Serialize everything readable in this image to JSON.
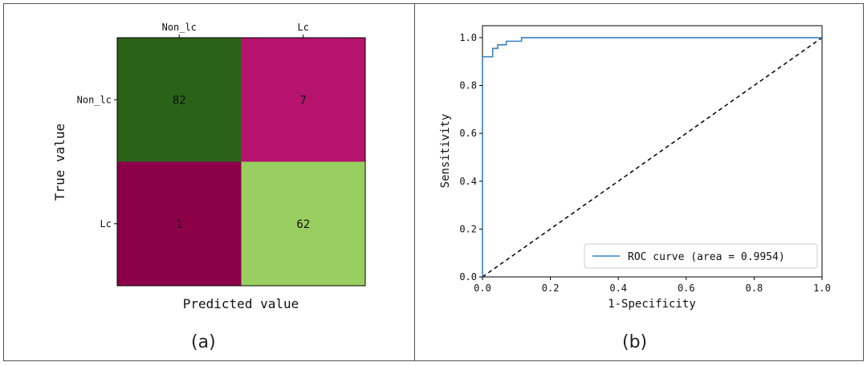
{
  "chart_data": [
    {
      "type": "heatmap",
      "panel_label": "(a)",
      "xlabel": "Predicted value",
      "ylabel": "True value",
      "x_categories": [
        "Non_lc",
        "Lc"
      ],
      "y_categories": [
        "Non_lc",
        "Lc"
      ],
      "values": [
        [
          82,
          7
        ],
        [
          1,
          62
        ]
      ],
      "cell_colors": [
        [
          "#2a6317",
          "#b5136e"
        ],
        [
          "#8c004a",
          "#99ce61"
        ]
      ]
    },
    {
      "type": "line",
      "panel_label": "(b)",
      "xlabel": "1-Specificity",
      "ylabel": "Sensitivity",
      "xlim": [
        0.0,
        1.0
      ],
      "ylim": [
        0.0,
        1.05
      ],
      "xticks": [
        "0.0",
        "0.2",
        "0.4",
        "0.6",
        "0.8",
        "1.0"
      ],
      "yticks": [
        "0.0",
        "0.2",
        "0.4",
        "0.6",
        "0.8",
        "1.0"
      ],
      "grid": false,
      "legend_position": "lower-right",
      "series": [
        {
          "name": "ROC curve (area = 0.9954)",
          "color": "#3b82c4",
          "style": "solid",
          "x": [
            0.0,
            0.0,
            0.03,
            0.03,
            0.045,
            0.045,
            0.07,
            0.07,
            0.115,
            0.115,
            1.0
          ],
          "y": [
            0.0,
            0.92,
            0.92,
            0.955,
            0.955,
            0.97,
            0.97,
            0.985,
            0.985,
            1.0,
            1.0
          ]
        },
        {
          "name": "",
          "color": "#000000",
          "style": "dashed",
          "x": [
            0.0,
            1.0
          ],
          "y": [
            0.0,
            1.0
          ]
        }
      ]
    }
  ]
}
